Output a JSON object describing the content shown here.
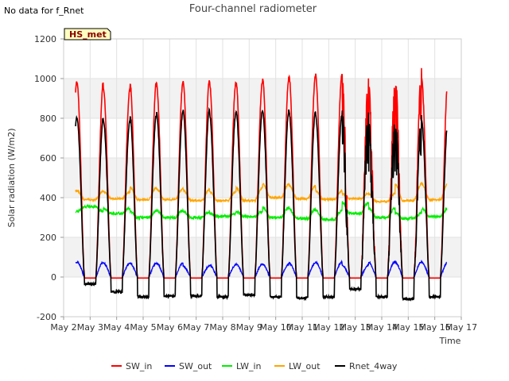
{
  "header": {
    "no_data_text": "No data for f_Rnet",
    "badge_label": "HS_met"
  },
  "chart_data": {
    "type": "line",
    "title": "Four-channel radiometer",
    "xlabel": "Time",
    "ylabel": "Solar radiation (W/m2)",
    "xlim": [
      0,
      15
    ],
    "ylim": [
      -200,
      1200
    ],
    "x_ticks": [
      {
        "label": "May 2",
        "value": 0
      },
      {
        "label": "May 3",
        "value": 1
      },
      {
        "label": "May 4",
        "value": 2
      },
      {
        "label": "May 5",
        "value": 3
      },
      {
        "label": "May 6",
        "value": 4
      },
      {
        "label": "May 7",
        "value": 5
      },
      {
        "label": "May 8",
        "value": 6
      },
      {
        "label": "May 9",
        "value": 7
      },
      {
        "label": "May 10",
        "value": 8
      },
      {
        "label": "May 11",
        "value": 9
      },
      {
        "label": "May 12",
        "value": 10
      },
      {
        "label": "May 13",
        "value": 11
      },
      {
        "label": "May 14",
        "value": 12
      },
      {
        "label": "May 15",
        "value": 13
      },
      {
        "label": "May 16",
        "value": 14
      },
      {
        "label": "May 17",
        "value": 15
      }
    ],
    "y_ticks": [
      -200,
      0,
      200,
      400,
      600,
      800,
      1000,
      1200
    ],
    "grid": true,
    "legend_position": "bottom",
    "colors": {
      "SW_in": "#ff0000",
      "SW_out": "#0000ff",
      "LW_in": "#00ee00",
      "LW_out": "#ffa500",
      "Rnet_4way": "#000000"
    },
    "series_names": [
      "SW_in",
      "SW_out",
      "LW_in",
      "LW_out",
      "Rnet_4way"
    ],
    "data_start": 0.45,
    "data_end": 14.45,
    "daily": [
      {
        "day": "May 2",
        "SW_in_peak": 985,
        "SW_out_peak": 75,
        "LW_in_day": 330,
        "LW_in_night": 355,
        "LW_out_day": 435,
        "LW_out_night": 390,
        "Rnet_peak": 805,
        "Rnet_night": -35
      },
      {
        "day": "May 3",
        "SW_in_peak": 945,
        "SW_out_peak": 70,
        "LW_in_day": 345,
        "LW_in_night": 320,
        "LW_out_day": 430,
        "LW_out_night": 395,
        "Rnet_peak": 785,
        "Rnet_night": -75
      },
      {
        "day": "May 4",
        "SW_in_peak": 980,
        "SW_out_peak": 70,
        "LW_in_day": 330,
        "LW_in_night": 300,
        "LW_out_day": 450,
        "LW_out_night": 390,
        "Rnet_peak": 815,
        "Rnet_night": -100
      },
      {
        "day": "May 5",
        "SW_in_peak": 975,
        "SW_out_peak": 70,
        "LW_in_day": 335,
        "LW_in_night": 300,
        "LW_out_day": 445,
        "LW_out_night": 390,
        "Rnet_peak": 830,
        "Rnet_night": -95
      },
      {
        "day": "May 6",
        "SW_in_peak": 990,
        "SW_out_peak": 55,
        "LW_in_day": 330,
        "LW_in_night": 300,
        "LW_out_day": 440,
        "LW_out_night": 385,
        "Rnet_peak": 845,
        "Rnet_night": -95
      },
      {
        "day": "May 7",
        "SW_in_peak": 980,
        "SW_out_peak": 60,
        "LW_in_day": 320,
        "LW_in_night": 305,
        "LW_out_day": 430,
        "LW_out_night": 385,
        "Rnet_peak": 825,
        "Rnet_night": -100
      },
      {
        "day": "May 8",
        "SW_in_peak": 985,
        "SW_out_peak": 65,
        "LW_in_day": 330,
        "LW_in_night": 305,
        "LW_out_day": 450,
        "LW_out_night": 385,
        "Rnet_peak": 840,
        "Rnet_night": -90
      },
      {
        "day": "May 9",
        "SW_in_peak": 1005,
        "SW_out_peak": 65,
        "LW_in_day": 350,
        "LW_in_night": 300,
        "LW_out_day": 470,
        "LW_out_night": 400,
        "Rnet_peak": 840,
        "Rnet_night": -100
      },
      {
        "day": "May 10",
        "SW_in_peak": 1010,
        "SW_out_peak": 70,
        "LW_in_day": 340,
        "LW_in_night": 295,
        "LW_out_day": 460,
        "LW_out_night": 395,
        "Rnet_peak": 830,
        "Rnet_night": -105
      },
      {
        "day": "May 11",
        "SW_in_peak": 1020,
        "SW_out_peak": 75,
        "LW_in_day": 335,
        "LW_in_night": 290,
        "LW_out_day": 435,
        "LW_out_night": 390,
        "Rnet_peak": 815,
        "Rnet_night": -100
      },
      {
        "day": "May 12",
        "SW_in_peak": 960,
        "SW_out_peak": 60,
        "LW_in_day": 375,
        "LW_in_night": 320,
        "LW_out_day": 420,
        "LW_out_night": 395,
        "Rnet_peak": 795,
        "Rnet_night": -60
      },
      {
        "day": "May 13",
        "SW_in_peak": 925,
        "SW_out_peak": 75,
        "LW_in_day": 345,
        "LW_in_night": 300,
        "LW_out_day": 420,
        "LW_out_night": 380,
        "Rnet_peak": 745,
        "Rnet_night": -100
      },
      {
        "day": "May 14",
        "SW_in_peak": 1000,
        "SW_out_peak": 75,
        "LW_in_day": 320,
        "LW_in_night": 295,
        "LW_out_day": 470,
        "LW_out_night": 385,
        "Rnet_peak": 775,
        "Rnet_night": -110
      },
      {
        "day": "May 15",
        "SW_in_peak": 995,
        "SW_out_peak": 75,
        "LW_in_day": 345,
        "LW_in_night": 305,
        "LW_out_day": 470,
        "LW_out_night": 390,
        "Rnet_peak": 785,
        "Rnet_night": -100
      }
    ]
  }
}
